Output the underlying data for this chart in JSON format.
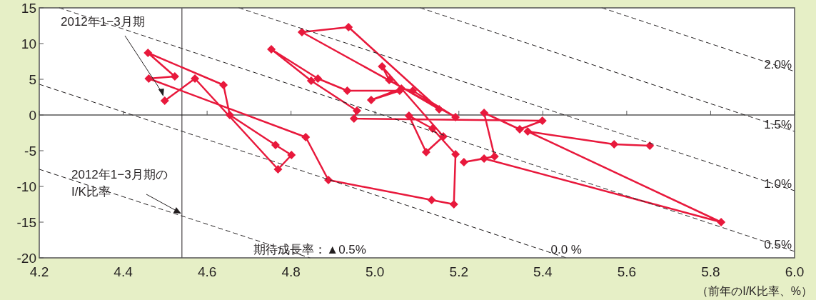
{
  "chart_data": {
    "type": "line",
    "xlabel": "（前年のI/K比率、%）",
    "xlim": [
      4.2,
      6.0
    ],
    "xticks": [
      4.2,
      4.4,
      4.6,
      4.8,
      {
        "value": 5,
        "label": "5.0"
      },
      5.2,
      5.4,
      5.6,
      5.8,
      {
        "value": 6,
        "label": "6.0"
      }
    ],
    "ylim": [
      -20,
      15
    ],
    "yticks": [
      -20,
      -15,
      -10,
      -5,
      0,
      5,
      10,
      15
    ],
    "grid": false,
    "marker": "diamond",
    "line_style": "solid",
    "series": [
      {
        "color": "#e8193c",
        "x": [
          5.655,
          5.57,
          5.364,
          5.825,
          5.26,
          5.212,
          5.285,
          5.26,
          5.345,
          5.399,
          4.95,
          4.957,
          4.848,
          4.753,
          4.864,
          4.934,
          5.059,
          4.991,
          5.063,
          5.09,
          5.192,
          4.826,
          4.937,
          5.153,
          5.034,
          5.017,
          5.163,
          5.122,
          5.081,
          5.137,
          5.192,
          5.188,
          5.135,
          4.889,
          4.835,
          4.461,
          4.523,
          4.459,
          4.639,
          4.654,
          4.763,
          4.801,
          4.769,
          4.571,
          4.499
        ],
        "values": [
          -4.3,
          -4.1,
          -2.3,
          -15.0,
          -6.1,
          -6.6,
          -5.8,
          0.3,
          -2.0,
          -0.8,
          -0.5,
          0.6,
          4.8,
          9.2,
          5.1,
          3.4,
          3.4,
          2.1,
          3.7,
          3.4,
          -0.3,
          11.6,
          12.3,
          0.8,
          4.9,
          6.8,
          -3.0,
          -5.2,
          -0.1,
          -1.9,
          -5.5,
          -12.5,
          -11.9,
          -9.1,
          -3.1,
          5.1,
          5.4,
          8.7,
          4.2,
          0.0,
          -4.2,
          -5.6,
          -7.6,
          5.1,
          2.0
        ]
      },
      {
        "name": "2.0%",
        "color": "#231f20",
        "marker": "none",
        "line_style": "dashed",
        "x": [
          5.541,
          6.0
        ],
        "values": [
          15,
          6.1
        ]
      },
      {
        "name": "1.5%",
        "color": "#231f20",
        "marker": "none",
        "line_style": "dashed",
        "x": [
          5.108,
          6.0
        ],
        "values": [
          15,
          -2.3
        ]
      },
      {
        "name": "1.0%",
        "color": "#231f20",
        "marker": "none",
        "line_style": "dashed",
        "x": [
          4.676,
          6.0
        ],
        "values": [
          15,
          -10.6
        ]
      },
      {
        "name": "0.5%",
        "color": "#231f20",
        "marker": "none",
        "line_style": "dashed",
        "x": [
          4.248,
          6.0
        ],
        "values": [
          15,
          -19.1
        ]
      },
      {
        "name": "0.0 %",
        "color": "#231f20",
        "marker": "none",
        "line_style": "dashed",
        "x": [
          4.2,
          5.456
        ],
        "values": [
          4.3,
          -20
        ]
      },
      {
        "name": "期待成長率：▲0.5%",
        "color": "#231f20",
        "marker": "none",
        "line_style": "dashed",
        "x": [
          4.2,
          4.845
        ],
        "values": [
          -7.6,
          -20
        ]
      }
    ],
    "ref_lines": [
      {
        "axis": "y",
        "value": 0,
        "color": "#555555"
      },
      {
        "axis": "x",
        "value": 4.54,
        "label": "2012年1−3月期の\nI/K比率",
        "color": "#231f20"
      }
    ],
    "annotations": [
      "2012年1−3月期"
    ]
  }
}
